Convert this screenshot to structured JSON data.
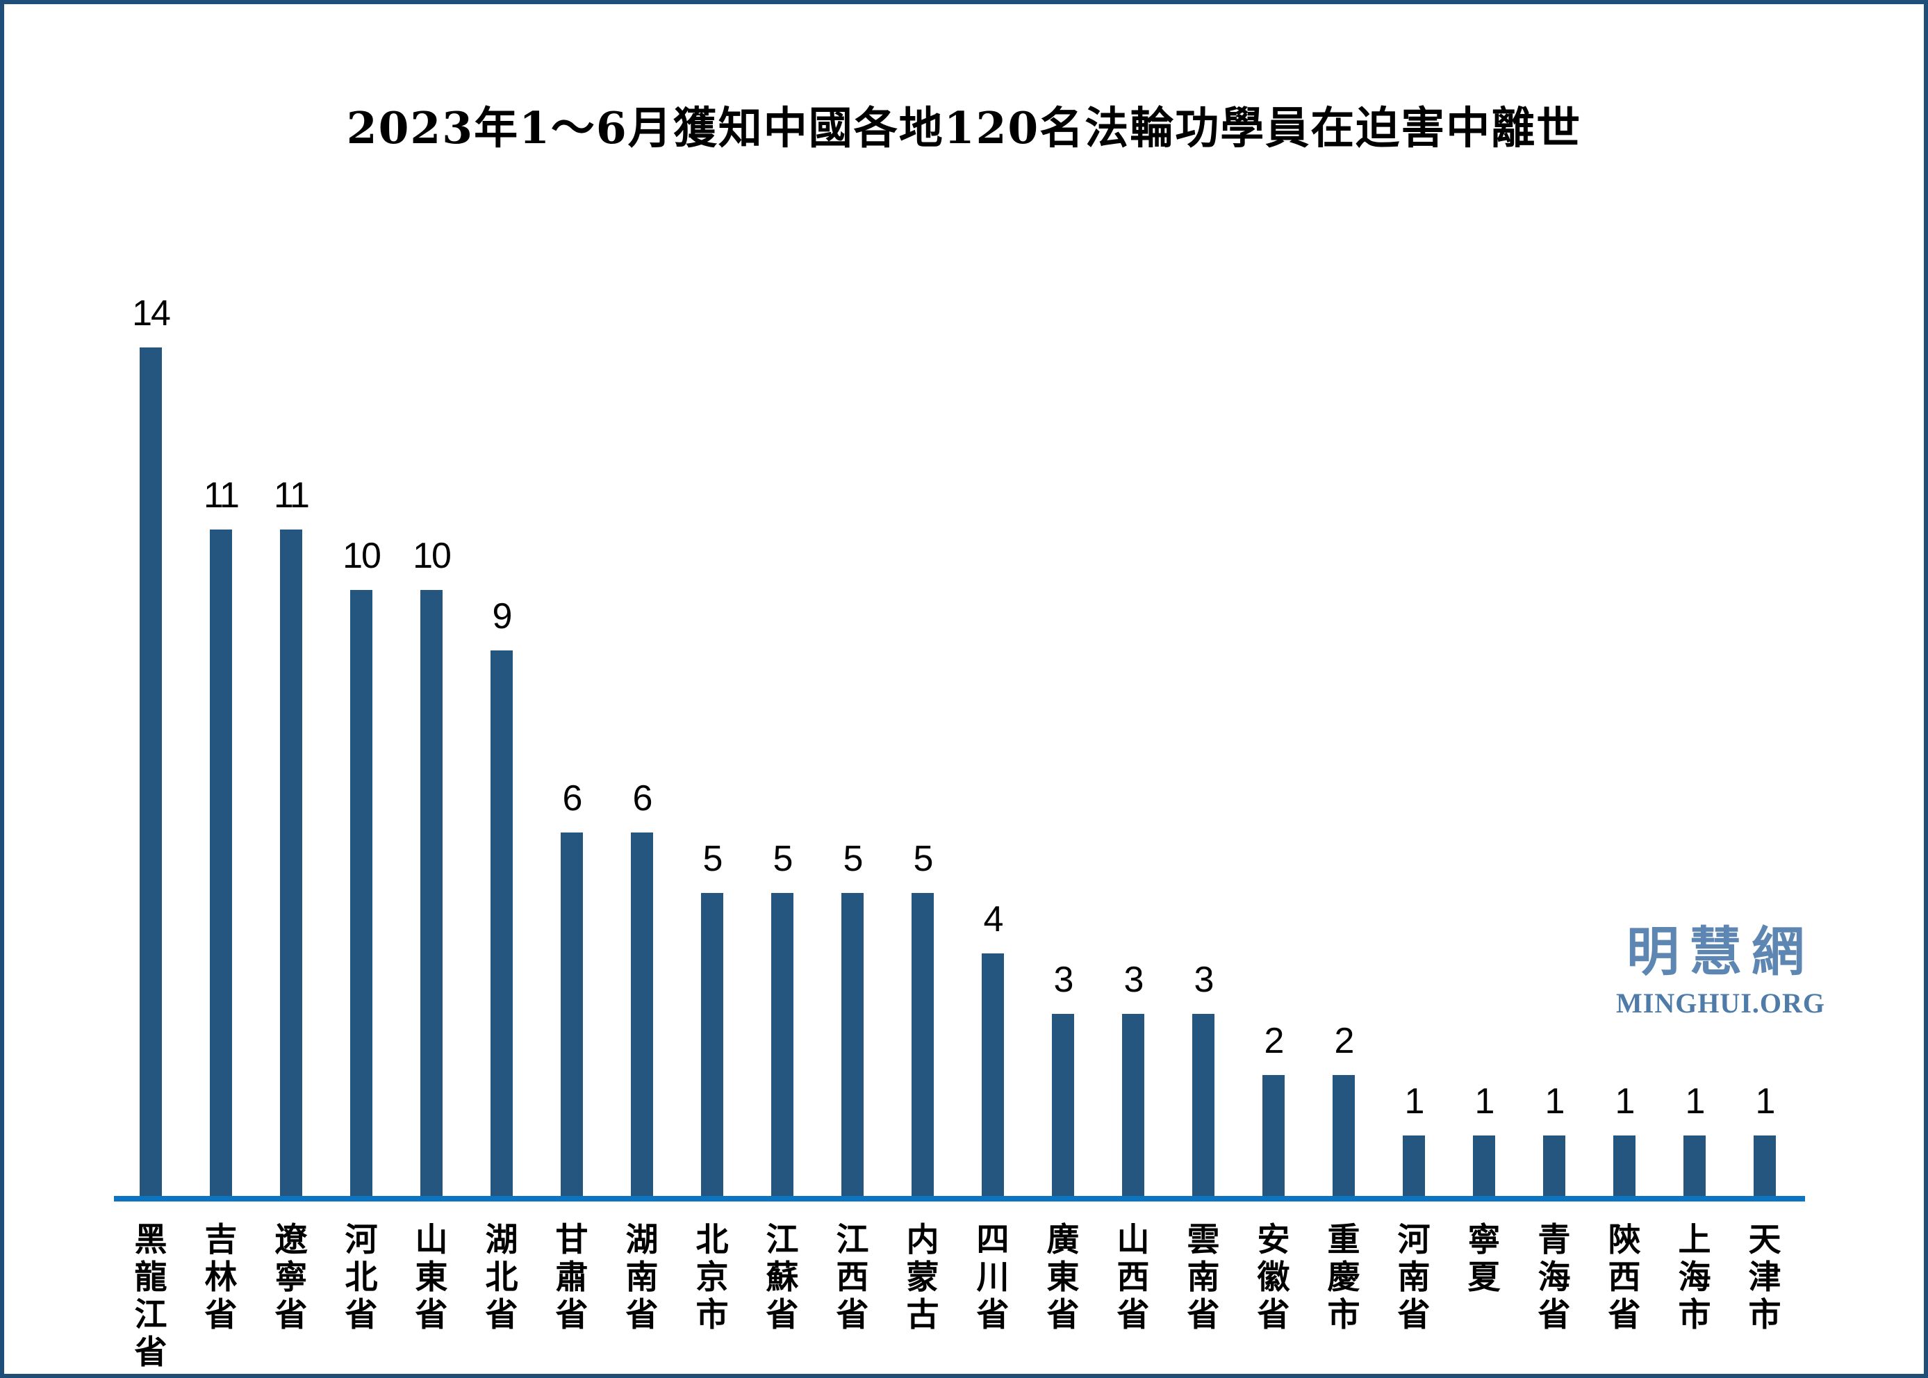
{
  "chart_data": {
    "type": "bar",
    "title": "2023年1～6月獲知中國各地120名法輪功學員在迫害中離世",
    "categories": [
      "黑龍江省",
      "吉林省",
      "遼寧省",
      "河北省",
      "山東省",
      "湖北省",
      "甘肅省",
      "湖南省",
      "北京市",
      "江蘇省",
      "江西省",
      "内蒙古",
      "四川省",
      "廣東省",
      "山西省",
      "雲南省",
      "安徽省",
      "重慶市",
      "河南省",
      "寧夏",
      "青海省",
      "陝西省",
      "上海市",
      "天津市"
    ],
    "values": [
      14,
      11,
      11,
      10,
      10,
      9,
      6,
      6,
      5,
      5,
      5,
      5,
      4,
      3,
      3,
      3,
      2,
      2,
      1,
      1,
      1,
      1,
      1,
      1
    ],
    "total": 120,
    "xlabel": "",
    "ylabel": "",
    "ylim": [
      0,
      14
    ],
    "grid": false,
    "legend": "none",
    "value_labels_shown": true,
    "category_label_orientation": "vertical",
    "colors": {
      "bar": "#255680",
      "axis_line": "#0C74C0",
      "frame_border": "#1F4E79",
      "title_text": "#000000",
      "value_label_text": "#000000",
      "category_label_text": "#000000",
      "logo_chinese_text": "#5D87B2",
      "logo_latin_text": "#4F7BA9",
      "background": "#FFFFFF"
    }
  },
  "logo": {
    "chinese": "明慧網",
    "latin": "MINGHUI.ORG"
  }
}
